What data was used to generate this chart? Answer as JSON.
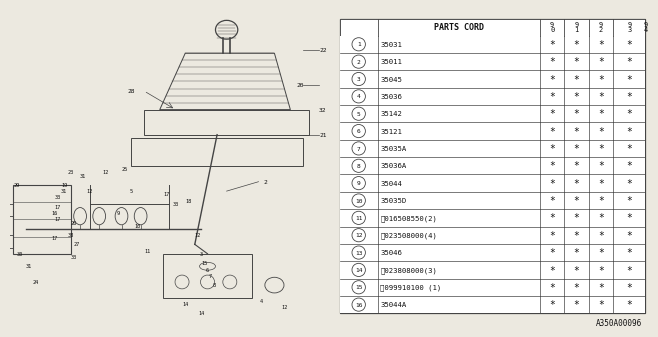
{
  "bg_color": "#ece9e0",
  "rows": [
    {
      "num": "1",
      "code": "35031",
      "stars": [
        1,
        1,
        1,
        1,
        0
      ]
    },
    {
      "num": "2",
      "code": "35011",
      "stars": [
        1,
        1,
        1,
        1,
        0
      ]
    },
    {
      "num": "3",
      "code": "35045",
      "stars": [
        1,
        1,
        1,
        1,
        0
      ]
    },
    {
      "num": "4",
      "code": "35036",
      "stars": [
        1,
        1,
        1,
        1,
        0
      ]
    },
    {
      "num": "5",
      "code": "35142",
      "stars": [
        1,
        1,
        1,
        1,
        0
      ]
    },
    {
      "num": "6",
      "code": "35121",
      "stars": [
        1,
        1,
        1,
        1,
        0
      ]
    },
    {
      "num": "7",
      "code": "35035A",
      "stars": [
        1,
        1,
        1,
        1,
        0
      ]
    },
    {
      "num": "8",
      "code": "35036A",
      "stars": [
        1,
        1,
        1,
        1,
        0
      ]
    },
    {
      "num": "9",
      "code": "35044",
      "stars": [
        1,
        1,
        1,
        1,
        0
      ]
    },
    {
      "num": "10",
      "code": "35035D",
      "stars": [
        1,
        1,
        1,
        1,
        0
      ]
    },
    {
      "num": "11",
      "code": "Ⓑ016508550(2)",
      "stars": [
        1,
        1,
        1,
        1,
        0
      ]
    },
    {
      "num": "12",
      "code": "Ⓝ023508000(4)",
      "stars": [
        1,
        1,
        1,
        1,
        0
      ]
    },
    {
      "num": "13",
      "code": "35046",
      "stars": [
        1,
        1,
        1,
        1,
        0
      ]
    },
    {
      "num": "14",
      "code": "Ⓝ023808000(3)",
      "stars": [
        1,
        1,
        1,
        1,
        0
      ]
    },
    {
      "num": "15",
      "code": "Ⓥ099910100 (1)",
      "stars": [
        1,
        1,
        1,
        1,
        0
      ]
    },
    {
      "num": "16",
      "code": "35044A",
      "stars": [
        1,
        1,
        1,
        1,
        0
      ]
    }
  ],
  "year_labels": [
    "9\n0",
    "9\n1",
    "9\n2",
    "9\n3",
    "9\n4"
  ],
  "footer": "A350A00096",
  "line_color": "#444444",
  "text_color": "#111111"
}
